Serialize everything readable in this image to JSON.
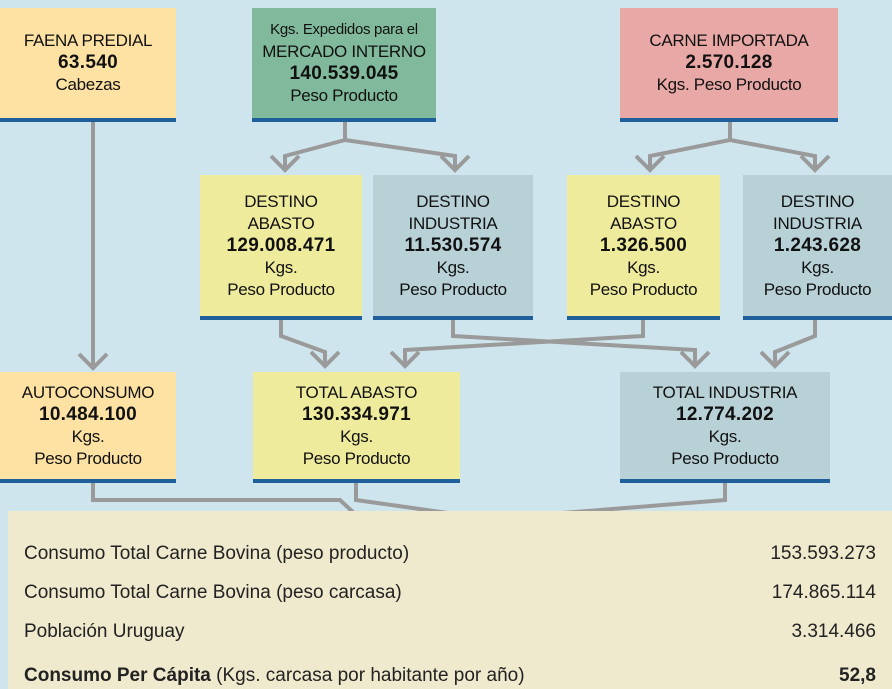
{
  "nodes": [
    {
      "lines": [
        "FAENA PREDIAL",
        "63.540",
        "Cabezas"
      ]
    },
    {
      "lines": [
        "Kgs. Expedidos para el",
        "MERCADO INTERNO",
        "140.539.045",
        "Peso Producto"
      ]
    },
    {
      "lines": [
        "CARNE IMPORTADA",
        "2.570.128",
        "Kgs. Peso Producto"
      ]
    },
    {
      "lines": [
        "DESTINO",
        "ABASTO",
        "129.008.471",
        "Kgs.",
        "Peso Producto"
      ]
    },
    {
      "lines": [
        "DESTINO",
        "INDUSTRIA",
        "11.530.574",
        "Kgs.",
        "Peso Producto"
      ]
    },
    {
      "lines": [
        "DESTINO",
        "ABASTO",
        "1.326.500",
        "Kgs.",
        "Peso Producto"
      ]
    },
    {
      "lines": [
        "DESTINO",
        "INDUSTRIA",
        "1.243.628",
        "Kgs.",
        "Peso Producto"
      ]
    },
    {
      "lines": [
        "AUTOCONSUMO",
        "10.484.100",
        "Kgs.",
        "Peso Producto"
      ]
    },
    {
      "lines": [
        "TOTAL ABASTO",
        "130.334.971",
        "Kgs.",
        "Peso Producto"
      ]
    },
    {
      "lines": [
        "TOTAL INDUSTRIA",
        "12.774.202",
        "Kgs.",
        "Peso Producto"
      ]
    }
  ],
  "summary": {
    "rows": [
      [
        "Consumo Total Carne Bovina (peso producto)",
        "153.593.273"
      ],
      [
        "Consumo Total Carne Bovina (peso carcasa)",
        "174.865.114"
      ],
      [
        "Población Uruguay",
        "3.314.466"
      ]
    ],
    "per_capita": {
      "label": "Consumo Per Cápita",
      "note": "(Kgs. carcasa por habitante por año)",
      "value": "52,8"
    }
  }
}
